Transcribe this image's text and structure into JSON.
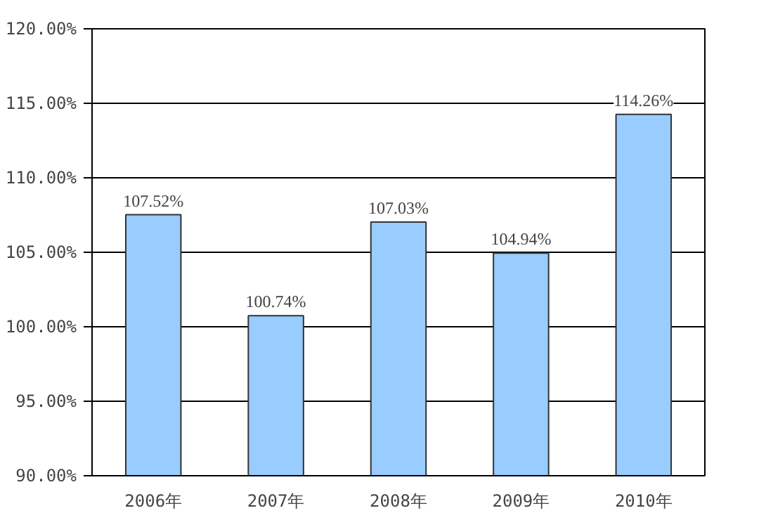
{
  "chart_data": {
    "type": "bar",
    "categories": [
      "2006年",
      "2007年",
      "2008年",
      "2009年",
      "2010年"
    ],
    "values": [
      107.52,
      100.74,
      107.03,
      104.94,
      114.26
    ],
    "value_labels": [
      "107.52%",
      "100.74%",
      "107.03%",
      "104.94%",
      "114.26%"
    ],
    "color": "#99ccff",
    "ylim": [
      90,
      120
    ],
    "yticks": [
      {
        "value": 90,
        "label": "90.00%"
      },
      {
        "value": 95,
        "label": "95.00%"
      },
      {
        "value": 100,
        "label": "100.00%"
      },
      {
        "value": 105,
        "label": "105.00%"
      },
      {
        "value": 110,
        "label": "110.00%"
      },
      {
        "value": 115,
        "label": "115.00%"
      },
      {
        "value": 120,
        "label": "120.00%"
      }
    ],
    "grid": "y"
  }
}
